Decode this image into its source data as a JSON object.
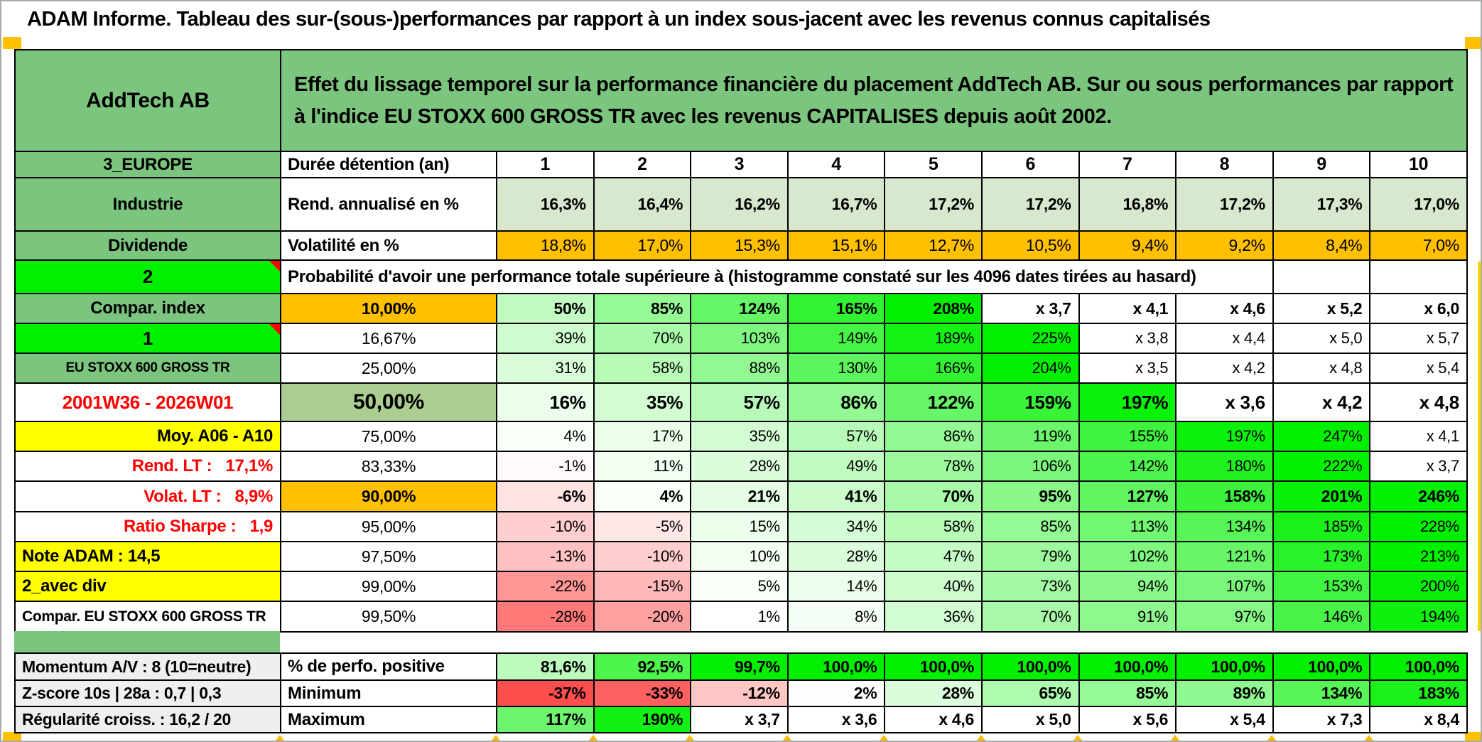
{
  "title": "ADAM Informe. Tableau des sur-(sous-)performances par rapport à un index sous-jacent avec les revenus connus capitalisés",
  "header": {
    "name": "AddTech AB",
    "description": "Effet du lissage temporel sur la performance financière du placement AddTech AB. Sur ou sous performances par rapport à l'indice EU STOXX 600 GROSS TR avec les revenus CAPITALISES depuis août 2002."
  },
  "colors": {
    "band_green": "#7CC57E",
    "bright_green": "#00F000",
    "orange": "#FFC000",
    "yellow": "#FFFF00",
    "sage": "#D7E8CF",
    "olive": "#ABCD92",
    "label_gray": "#EFEFEF",
    "red_text": "#FF0000",
    "heat_pos": "#00F000",
    "heat_neg": "#FF4040",
    "marker_orange": "#FFB900",
    "edge_strip_yellow": "#FFD400"
  },
  "rows": [
    {
      "left": {
        "t": "3_EUROPE",
        "bg": "green",
        "bold": true
      },
      "mid": {
        "t": "Durée détention (an)",
        "bold": true
      },
      "cells": [
        "1",
        "2",
        "3",
        "4",
        "5",
        "6",
        "7",
        "8",
        "9",
        "10"
      ]
    },
    {
      "left": {
        "t": "Industrie",
        "bg": "green",
        "bold": true
      },
      "mid": {
        "t": "Rend. annualisé en %",
        "bold": true
      },
      "cells": [
        "16,3%",
        "16,4%",
        "16,2%",
        "16,7%",
        "17,2%",
        "17,2%",
        "16,8%",
        "17,2%",
        "17,3%",
        "17,0%"
      ]
    },
    {
      "left": {
        "t": "Dividende",
        "bg": "green",
        "bold": true
      },
      "mid": {
        "t": "Volatilité en %",
        "bold": true
      },
      "cells": [
        "18,8%",
        "17,0%",
        "15,3%",
        "15,1%",
        "12,7%",
        "10,5%",
        "9,4%",
        "9,2%",
        "8,4%",
        "7,0%"
      ]
    },
    {
      "left": {
        "t": "2",
        "bg": "lime",
        "bold": true,
        "marker": true
      },
      "merged": "Probabilité d'avoir une performance totale supérieure à (histogramme constaté sur les 4096 dates tirées au hasard)",
      "cells": [
        "",
        ""
      ]
    },
    {
      "left": {
        "t": "Compar. index",
        "bg": "green",
        "bold": true
      },
      "mid": {
        "t": "10,00%",
        "bg": "orange",
        "bold": true
      },
      "cells": [
        "50%",
        "85%",
        "124%",
        "165%",
        "208%",
        "x 3,7",
        "x 4,1",
        "x 4,6",
        "x 5,2",
        "x 6,0"
      ]
    },
    {
      "left": {
        "t": "1",
        "bg": "lime",
        "bold": true,
        "marker": true
      },
      "mid": {
        "t": "16,67%"
      },
      "cells": [
        "39%",
        "70%",
        "103%",
        "149%",
        "189%",
        "225%",
        "x 3,8",
        "x 4,4",
        "x 5,0",
        "x 5,7"
      ]
    },
    {
      "left": {
        "t": "EU STOXX 600 GROSS TR",
        "bg": "green",
        "bold": true
      },
      "mid": {
        "t": "25,00%"
      },
      "cells": [
        "31%",
        "58%",
        "88%",
        "130%",
        "166%",
        "204%",
        "x 3,5",
        "x 4,2",
        "x 4,8",
        "x 5,4"
      ]
    },
    {
      "left": {
        "t": "2001W36 - 2026W01",
        "bg": "white",
        "fg": "red",
        "bold": true
      },
      "mid": {
        "t": "50,00%",
        "bg": "olive",
        "bold": true
      },
      "cells": [
        "16%",
        "35%",
        "57%",
        "86%",
        "122%",
        "159%",
        "197%",
        "x 3,6",
        "x 4,2",
        "x 4,8"
      ]
    },
    {
      "left": {
        "t": "Moy. A06 - A10",
        "bg": "yellow",
        "bold": true
      },
      "mid": {
        "t": "75,00%"
      },
      "cells": [
        "4%",
        "17%",
        "35%",
        "57%",
        "86%",
        "119%",
        "155%",
        "197%",
        "247%",
        "x 4,1"
      ]
    },
    {
      "left": {
        "t": "Rend. LT :   17,1%",
        "bg": "white",
        "fg": "red",
        "bold": true
      },
      "mid": {
        "t": "83,33%"
      },
      "cells": [
        "-1%",
        "11%",
        "28%",
        "49%",
        "78%",
        "106%",
        "142%",
        "180%",
        "222%",
        "x 3,7"
      ]
    },
    {
      "left": {
        "t": "Volat. LT :   8,9%",
        "bg": "white",
        "fg": "red",
        "bold": true
      },
      "mid": {
        "t": "90,00%",
        "bg": "orange",
        "bold": true
      },
      "cells": [
        "-6%",
        "4%",
        "21%",
        "41%",
        "70%",
        "95%",
        "127%",
        "158%",
        "201%",
        "246%"
      ]
    },
    {
      "left": {
        "t": "Ratio Sharpe :   1,9",
        "bg": "white",
        "fg": "red",
        "bold": true
      },
      "mid": {
        "t": "95,00%"
      },
      "cells": [
        "-10%",
        "-5%",
        "15%",
        "34%",
        "58%",
        "85%",
        "113%",
        "134%",
        "185%",
        "228%"
      ]
    },
    {
      "left": {
        "t": "Note ADAM : 14,5",
        "bg": "yellow",
        "bold": true
      },
      "mid": {
        "t": "97,50%"
      },
      "cells": [
        "-13%",
        "-10%",
        "10%",
        "28%",
        "47%",
        "79%",
        "102%",
        "121%",
        "173%",
        "213%"
      ]
    },
    {
      "left": {
        "t": "2_avec div",
        "bg": "yellow",
        "bold": true
      },
      "mid": {
        "t": "99,00%"
      },
      "cells": [
        "-22%",
        "-15%",
        "5%",
        "14%",
        "40%",
        "73%",
        "94%",
        "107%",
        "153%",
        "200%"
      ]
    },
    {
      "left": {
        "t": "Compar. EU STOXX 600 GROSS TR",
        "bg": "white",
        "bold": true
      },
      "mid": {
        "t": "99,50%"
      },
      "cells": [
        "-28%",
        "-20%",
        "1%",
        "8%",
        "36%",
        "70%",
        "91%",
        "97%",
        "146%",
        "194%"
      ]
    },
    {
      "left": {
        "t": "Momentum A/V : 8 (10=neutre)",
        "bg": "gray",
        "bold": true
      },
      "mid": {
        "t": "% de perfo. positive",
        "bold": true
      },
      "cells": [
        "81,6%",
        "92,5%",
        "99,7%",
        "100,0%",
        "100,0%",
        "100,0%",
        "100,0%",
        "100,0%",
        "100,0%",
        "100,0%"
      ]
    },
    {
      "left": {
        "t": "Z-score 10s | 28a : 0,7 | 0,3",
        "bg": "gray",
        "bold": true
      },
      "mid": {
        "t": "Minimum",
        "bold": true
      },
      "cells": [
        "-37%",
        "-33%",
        "-12%",
        "2%",
        "28%",
        "65%",
        "85%",
        "89%",
        "134%",
        "183%"
      ]
    },
    {
      "left": {
        "t": "Régularité croiss. : 16,2 / 20",
        "bg": "gray",
        "bold": true
      },
      "mid": {
        "t": "Maximum",
        "bold": true
      },
      "cells": [
        "117%",
        "190%",
        "x 3,7",
        "x 3,6",
        "x 4,6",
        "x 5,0",
        "x 5,6",
        "x 5,4",
        "x 7,3",
        "x 8,4"
      ]
    }
  ]
}
